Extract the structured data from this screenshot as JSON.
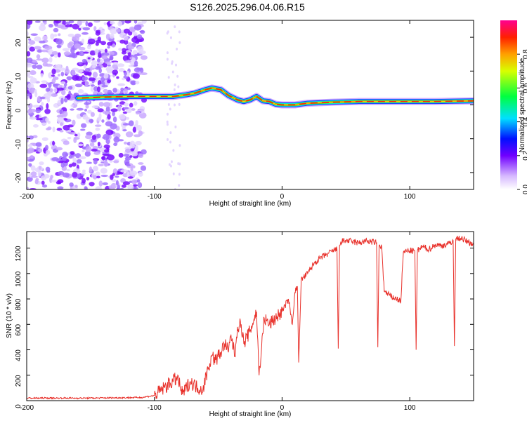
{
  "title": "S126.2025.296.04.06.R15",
  "chart_data": [
    {
      "type": "heatmap",
      "xlabel": "Height of straight line (km)",
      "ylabel": "Frequency (Hz)",
      "xlim": [
        -200,
        150
      ],
      "ylim": [
        -25,
        25
      ],
      "x_ticks": [
        -200,
        -100,
        0,
        100
      ],
      "x_tick_labels": [
        "-200",
        "-100",
        "0",
        "100"
      ],
      "y_ticks": [
        -20,
        -10,
        0,
        10,
        20
      ],
      "y_tick_labels": [
        "-20",
        "-10",
        "0",
        "10",
        "20"
      ],
      "colorbar": {
        "label": "Normalized spectral amplitude",
        "range": [
          0,
          1
        ],
        "ticks": [
          0.0,
          0.2,
          0.4,
          0.6,
          0.8
        ],
        "tick_labels": [
          "0.0",
          "0.2",
          "0.4",
          "0.6",
          "0.8"
        ]
      },
      "ridge": {
        "x": [
          -160,
          -140,
          -120,
          -100,
          -85,
          -75,
          -68,
          -60,
          -55,
          -48,
          -42,
          -35,
          -30,
          -25,
          -20,
          -15,
          -10,
          -5,
          0,
          10,
          20,
          40,
          60,
          80,
          100,
          120,
          150
        ],
        "frequency": [
          2,
          2.3,
          2.5,
          2.5,
          2.5,
          3,
          3.5,
          4.5,
          5,
          4.5,
          2.8,
          1.5,
          1,
          1.5,
          2.5,
          1.2,
          1,
          0.2,
          0,
          0,
          0.5,
          0.8,
          1,
          1,
          1,
          1,
          1.2
        ]
      }
    },
    {
      "type": "line",
      "xlabel": "Height of straight line (km)",
      "ylabel": "SNR (10 * v/v)",
      "xlim": [
        -200,
        150
      ],
      "ylim": [
        0,
        1330
      ],
      "x_ticks": [
        -200,
        -100,
        0,
        100
      ],
      "x_tick_labels": [
        "-200",
        "-100",
        "0",
        "100"
      ],
      "y_ticks": [
        0,
        200,
        400,
        600,
        800,
        1000,
        1200
      ],
      "y_tick_labels": [
        "0",
        "200",
        "400",
        "600",
        "800",
        "1000",
        "1200"
      ],
      "color": "#e8302a",
      "x": [
        -200,
        -150,
        -110,
        -100,
        -90,
        -82,
        -78,
        -72,
        -66,
        -62,
        -58,
        -55,
        -52,
        -48,
        -45,
        -42,
        -40,
        -37,
        -35,
        -32,
        -30,
        -25,
        -20,
        -18,
        -14,
        -10,
        -5,
        0,
        5,
        8,
        10,
        12,
        13,
        15,
        20,
        25,
        30,
        35,
        40,
        43,
        44,
        45,
        46,
        50,
        55,
        60,
        65,
        70,
        74,
        75,
        76,
        78,
        80,
        85,
        90,
        93,
        95,
        100,
        104,
        105,
        106,
        110,
        115,
        120,
        125,
        130,
        134,
        135,
        136,
        140,
        145,
        150
      ],
      "y": [
        20,
        20,
        25,
        40,
        120,
        180,
        50,
        150,
        100,
        90,
        250,
        350,
        320,
        380,
        450,
        380,
        520,
        350,
        580,
        600,
        450,
        550,
        700,
        200,
        650,
        600,
        650,
        700,
        800,
        600,
        850,
        900,
        300,
        950,
        1000,
        1080,
        1120,
        1150,
        1180,
        1190,
        410,
        1220,
        1250,
        1260,
        1250,
        1240,
        1255,
        1250,
        1240,
        420,
        1220,
        1210,
        860,
        820,
        800,
        780,
        1170,
        1180,
        1175,
        400,
        1180,
        1210,
        1190,
        1225,
        1220,
        1230,
        1260,
        430,
        1270,
        1280,
        1250,
        1230
      ]
    }
  ]
}
